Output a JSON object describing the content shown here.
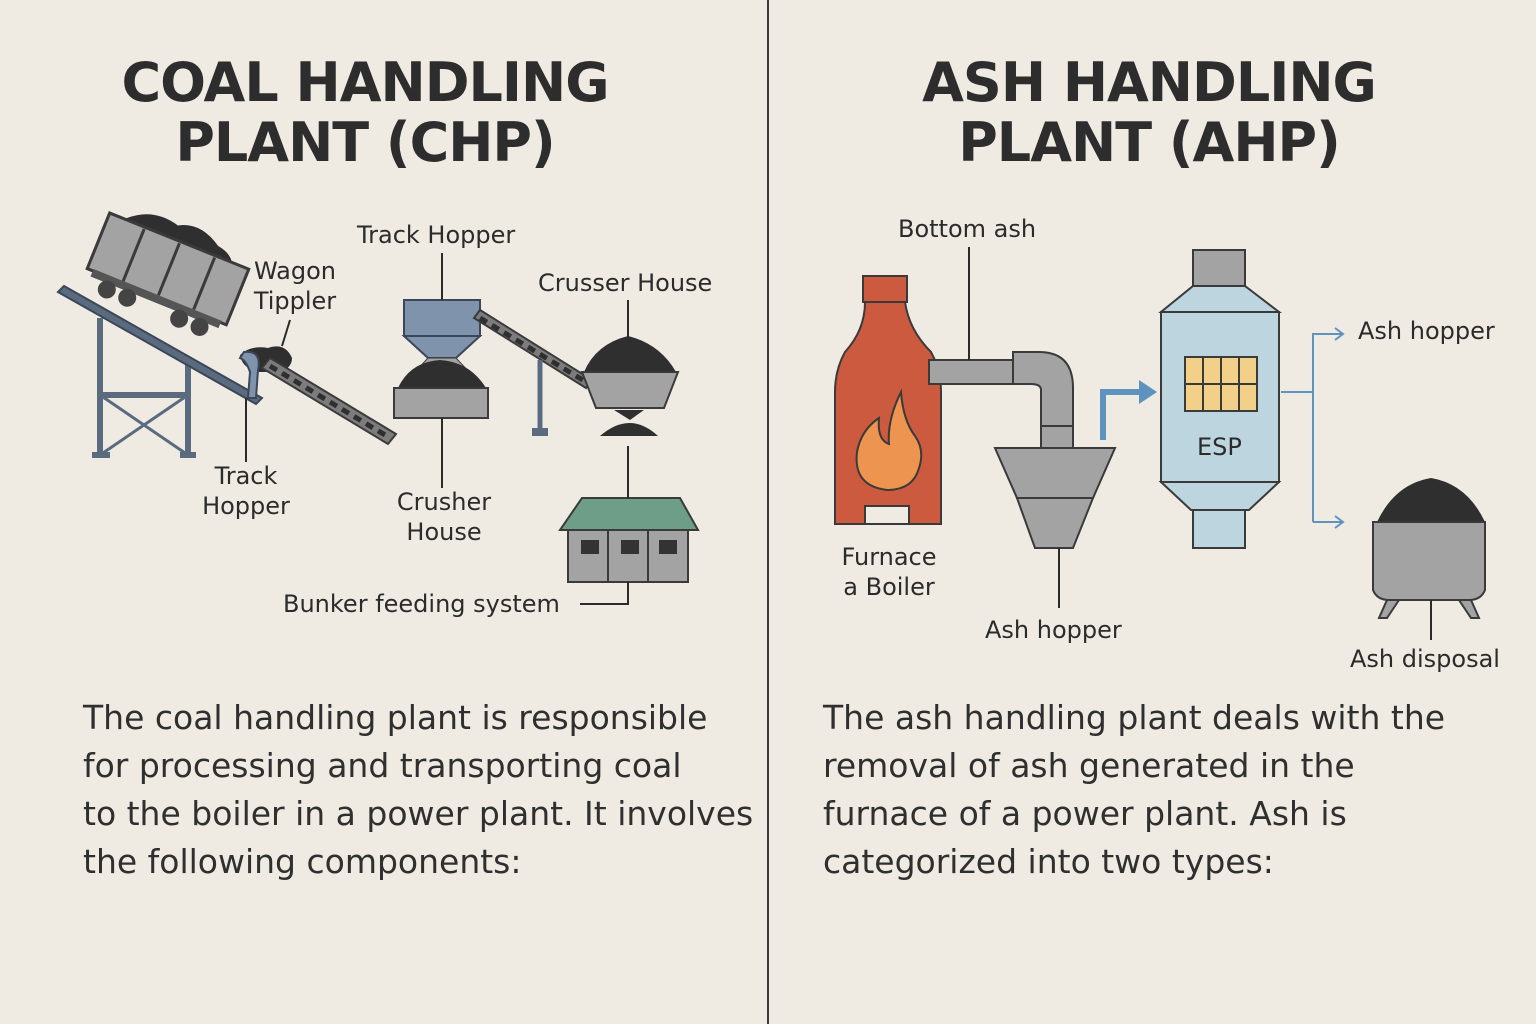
{
  "coal": {
    "title_line1": "COAL HANDLING",
    "title_line2": "PLANT (CHP)",
    "labels": {
      "wagon_tippler_1": "Wagon",
      "wagon_tippler_2": "Tippler",
      "track_hopper_top": "Track Hopper",
      "crusser_house": "Crusser House",
      "track_hopper_bottom_1": "Track",
      "track_hopper_bottom_2": "Hopper",
      "crusher_house_1": "Crusher",
      "crusher_house_2": "House",
      "bunker_feeding": "Bunker feeding system"
    },
    "desc_lines": [
      "The coal handling plant is responsible",
      "for processing and transporting coal",
      "to the boiler in a power plant. It involves",
      "the following components:"
    ]
  },
  "ash": {
    "title_line1": "ASH HANDLING",
    "title_line2": "PLANT (AHP)",
    "labels": {
      "bottom_ash": "Bottom ash",
      "ash_hopper_right": "Ash hopper",
      "esp": "ESP",
      "furnace_1": "Furnace",
      "furnace_2": "a Boiler",
      "ash_hopper_bottom": "Ash hopper",
      "ash_disposal": "Ash disposal"
    },
    "desc_lines": [
      "The ash handling plant deals with the",
      "removal of ash generated in the",
      "furnace of a power plant. Ash is",
      "categorized into two types:"
    ]
  },
  "colors": {
    "background": "#efebe3",
    "divider": "#3a3a3a",
    "steel_blue": "#5a6b80",
    "equipment_gray": "#a3a3a3",
    "coal_black": "#2f2f2f",
    "hopper_blue": "#7f93ad",
    "roof_green": "#6f9e88",
    "furnace_red": "#cc5a3f",
    "flame_orange": "#ec9450",
    "esp_blue": "#bcd5de",
    "esp_grid_yellow": "#f2d08a",
    "arrow_blue": "#5d93bd"
  }
}
